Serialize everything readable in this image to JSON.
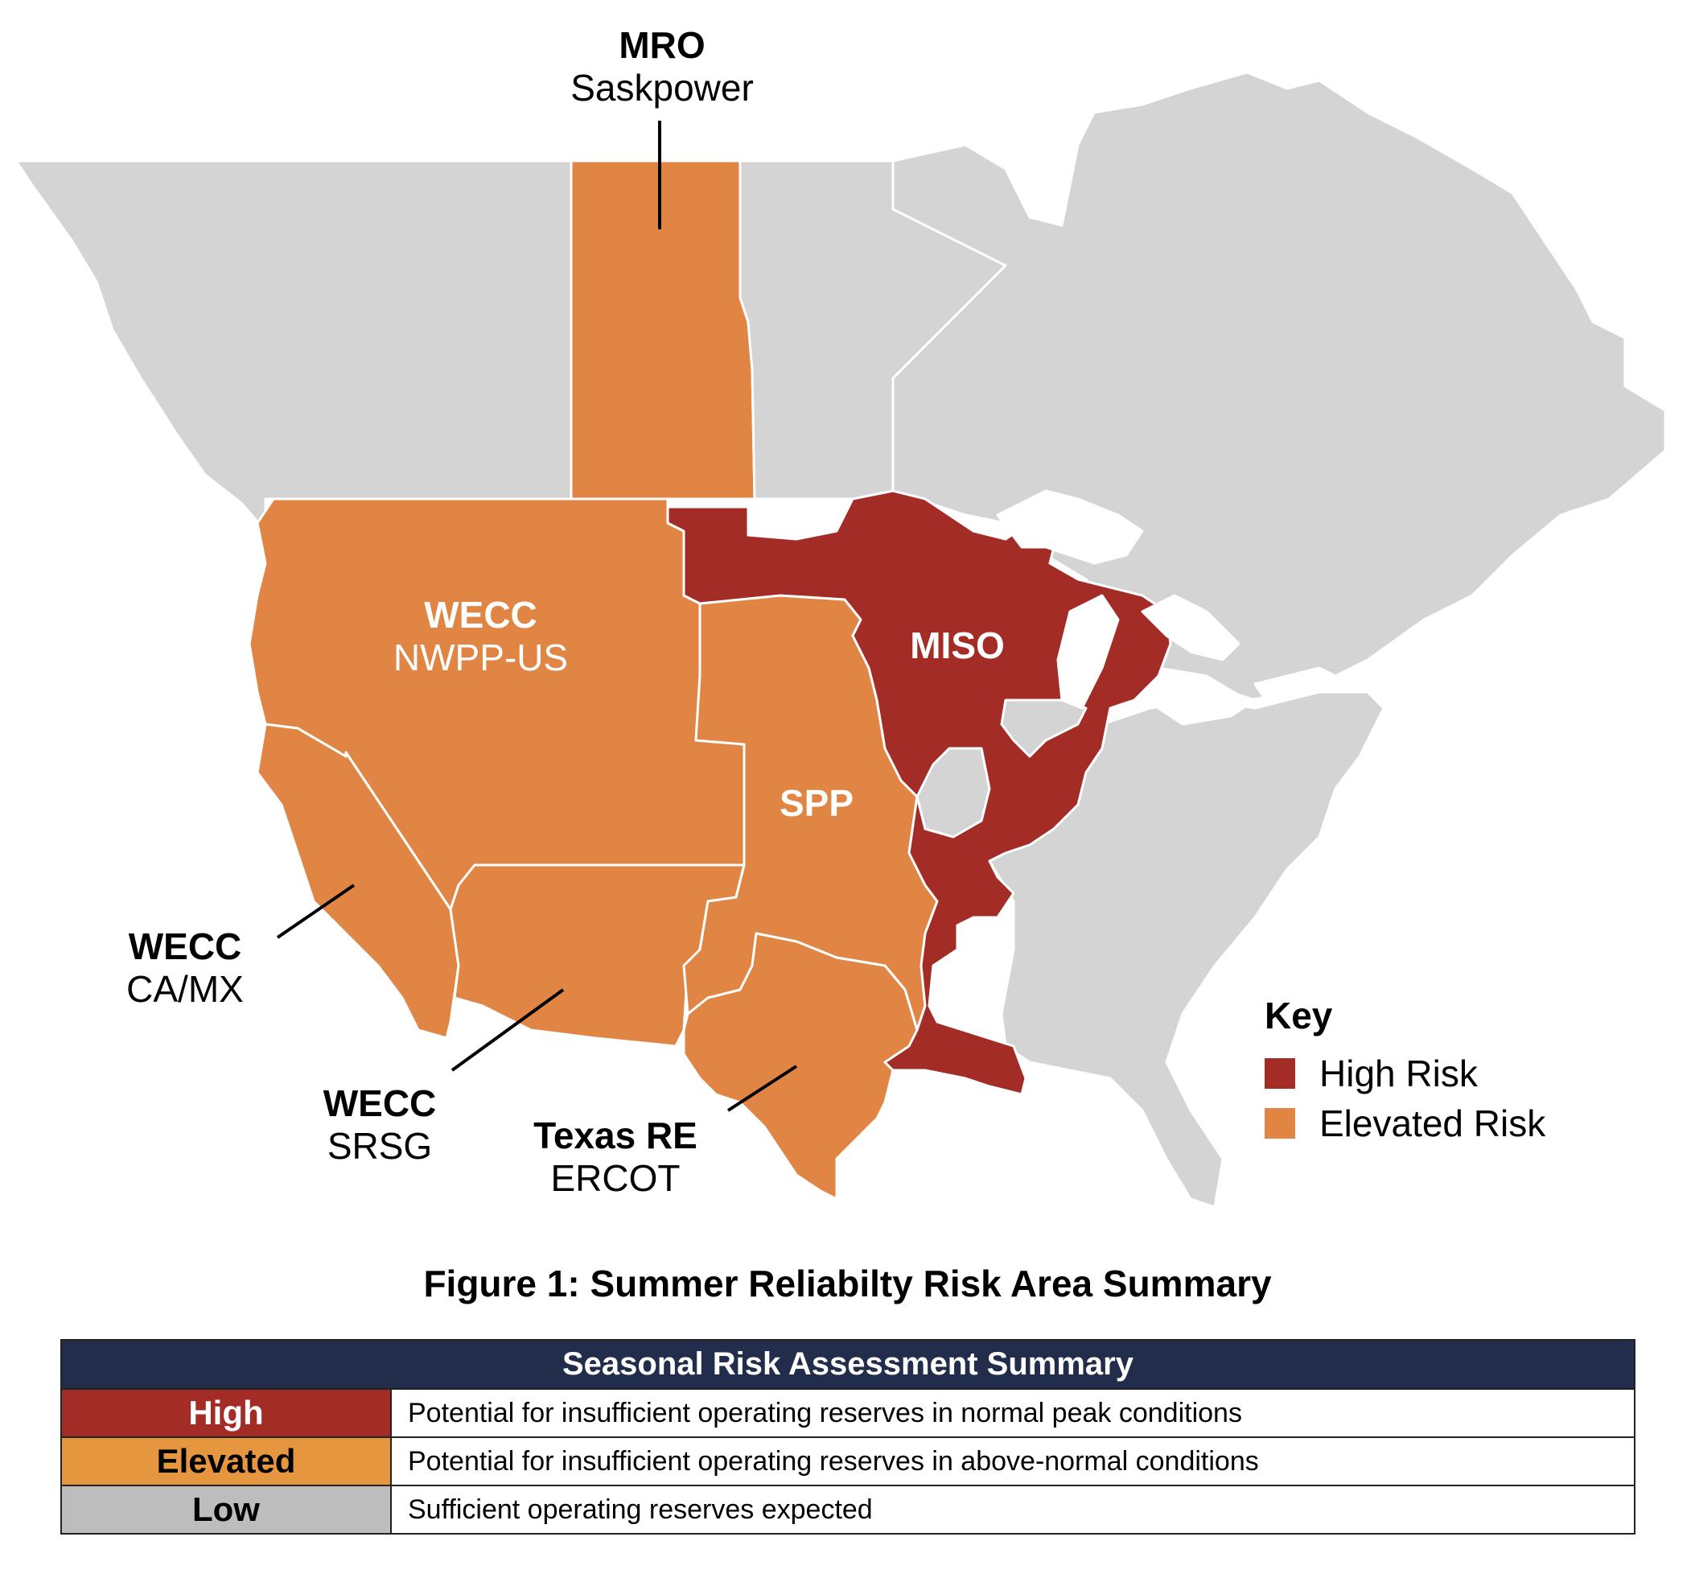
{
  "colors": {
    "high": "#a32d26",
    "elevated": "#e08544",
    "low": "#d4d4d4",
    "table_header": "#222d4b",
    "table_elevated": "#e5963f",
    "table_low": "#bdbdbd"
  },
  "labels": {
    "mro": {
      "bold": "MRO",
      "sub": "Saskpower"
    },
    "wecc_nwpp": {
      "bold": "WECC",
      "sub": "NWPP-US"
    },
    "miso": {
      "bold": "MISO"
    },
    "spp": {
      "bold": "SPP"
    },
    "wecc_camx": {
      "bold": "WECC",
      "sub": "CA/MX"
    },
    "wecc_srsg": {
      "bold": "WECC",
      "sub": "SRSG"
    },
    "texas_re": {
      "bold": "Texas RE",
      "sub": "ERCOT"
    }
  },
  "key": {
    "title": "Key",
    "items": [
      {
        "label": "High Risk",
        "level": "high"
      },
      {
        "label": "Elevated Risk",
        "level": "elevated"
      }
    ]
  },
  "caption": "Figure 1: Summer Reliabilty Risk Area Summary",
  "table": {
    "title": "Seasonal Risk Assessment Summary",
    "rows": [
      {
        "level": "High",
        "description": "Potential for insufficient operating reserves in normal peak conditions"
      },
      {
        "level": "Elevated",
        "description": "Potential for insufficient operating reserves in above-normal conditions"
      },
      {
        "level": "Low",
        "description": "Sufficient operating reserves expected"
      }
    ]
  }
}
